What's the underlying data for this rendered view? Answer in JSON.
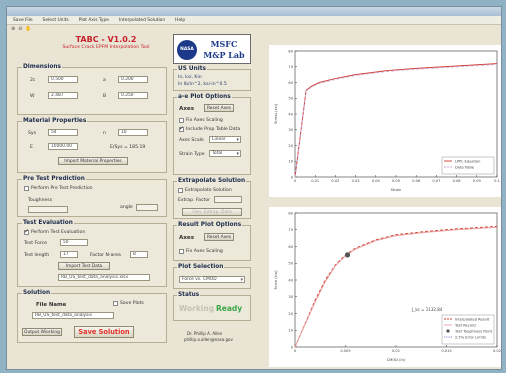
{
  "menu": [
    "Save File",
    "Select Units",
    "Plot Axis Type",
    "Interpolated Solution",
    "Help"
  ],
  "toolbar_icons": [
    "zoom-in-icon",
    "zoom-out-icon",
    "pan-icon"
  ],
  "app": {
    "title": "TABC - V1.0.2",
    "subtitle": "Surface Crack EPFM Interpolation Tool"
  },
  "logo": {
    "line1": "MSFC",
    "line2": "M&P Lab",
    "badge": "NASA"
  },
  "dimensions": {
    "title": "Dimensions",
    "fields": [
      {
        "label": "2c",
        "value": "0.500"
      },
      {
        "label": "a",
        "value": "0.200"
      },
      {
        "label": "W",
        "value": "2.487"
      },
      {
        "label": "B",
        "value": "0.250"
      }
    ]
  },
  "units": {
    "title": "US Units",
    "line1": "In, ksi, Kin",
    "line2": "In Ib/in^2, ksi-in^0.5"
  },
  "material": {
    "title": "Material Properties",
    "sys_label": "Sys",
    "sys_value": "54",
    "n_label": "n",
    "n_value": "10",
    "e_label": "E",
    "e_value": "10000.00",
    "e_note": "E/Sys = 185.19",
    "import_button": "Import Material Properties"
  },
  "plot_options": {
    "title": "a-e Plot Options",
    "axes_label": "Axes",
    "reset_button": "Reset Axes",
    "fix_axes": "Fix Axes Scaling",
    "include_table": "Include Prop Table Data",
    "axes_scale_label": "Axes Scale",
    "axes_scale_value": "Linear",
    "strain_type_label": "Strain Type",
    "strain_type_value": "Total"
  },
  "pretest": {
    "title": "Pre Test Prediction",
    "checkbox": "Perform Pre Test Prediction",
    "toughness_label": "Toughness",
    "angle_label": "angle"
  },
  "extrapolate": {
    "title": "Extrapolate Solution",
    "checkbox": "Extrapolate Solution",
    "error_label": "Extrap. Factor",
    "button": "Gen. Extrap. Data"
  },
  "test_eval": {
    "title": "Test Evaluation",
    "checkbox": "Perform Test Evaluation",
    "force_label": "Test Force",
    "force_value": "50",
    "length_label": "Test length",
    "length_value": "17",
    "factor_label": "Factor N-area",
    "factor_value": "8",
    "import_button": "Import Test Data",
    "file_value": "RB_US_test_data_analysis.xlsx"
  },
  "result_options": {
    "title": "Result Plot Options",
    "axes_label": "Axes",
    "reset_button": "Reset Axes",
    "fix_axes": "Fix Axes Scaling"
  },
  "plot_selection": {
    "title": "Plot Selection",
    "value": "Force vs. CMOD"
  },
  "solution": {
    "title": "Solution",
    "file_name_label": "File Name",
    "save_plots": "Save Plots",
    "file_value": "RB_US_test_data_analysis",
    "output_button": "Output Wiorking",
    "save_button": "Save Solution"
  },
  "status": {
    "title": "Status",
    "working": "Working",
    "ready": "Ready"
  },
  "credit": {
    "line1": "Dr. Phillip A. Allen",
    "line2": "phillip.a.allen@nasa.gov"
  },
  "chart_data": [
    {
      "type": "line",
      "title": "",
      "xlabel": "Strain",
      "ylabel": "Stress (ksi)",
      "xlim": [
        0,
        0.1
      ],
      "ylim": [
        0,
        80
      ],
      "x_ticks": [
        "0",
        "0.01",
        "0.02",
        "0.03",
        "0.04",
        "0.05",
        "0.06",
        "0.07",
        "0.08",
        "0.09",
        "0.1"
      ],
      "y_ticks": [
        "0",
        "10",
        "20",
        "30",
        "40",
        "50",
        "60",
        "70",
        "80"
      ],
      "legend_position": "bottom-right",
      "series": [
        {
          "name": "LPPL Equation",
          "color": "#d33a2a",
          "dash": "solid",
          "x": [
            0,
            0.0055,
            0.008,
            0.012,
            0.02,
            0.03,
            0.045,
            0.06,
            0.08,
            0.1
          ],
          "y": [
            0,
            55,
            57.5,
            60,
            62.5,
            65,
            67.5,
            69,
            70.5,
            72
          ]
        },
        {
          "name": "Data Table",
          "color": "#c9a7d6",
          "dash": "dashed",
          "x": [
            0,
            0.0055,
            0.008,
            0.012,
            0.02,
            0.03,
            0.045,
            0.06,
            0.08,
            0.1
          ],
          "y": [
            0,
            54.5,
            57,
            59.5,
            62,
            64.5,
            67,
            68.5,
            70,
            71.5
          ]
        }
      ]
    },
    {
      "type": "line",
      "title": "",
      "xlabel": "CMOD (in)",
      "ylabel": "Force (kip)",
      "xlim": [
        0,
        0.02
      ],
      "ylim": [
        0,
        80
      ],
      "x_ticks": [
        "0",
        "0.005",
        "0.01",
        "0.015",
        "0.02"
      ],
      "y_ticks": [
        "0",
        "10",
        "20",
        "30",
        "40",
        "50",
        "60",
        "70",
        "80"
      ],
      "annotation": "J_kc = 1132.84",
      "legend_position": "bottom-right",
      "series": [
        {
          "name": "Interpolated Result",
          "color": "#d33a2a",
          "dash": "dashed",
          "x": [
            0,
            0.001,
            0.002,
            0.003,
            0.004,
            0.005,
            0.006,
            0.008,
            0.01,
            0.013,
            0.016,
            0.02
          ],
          "y": [
            0,
            14,
            28,
            40,
            49,
            55,
            59,
            64,
            67,
            69,
            70.5,
            72
          ]
        },
        {
          "name": "Test Record",
          "color": "#e8a0a0",
          "dash": "solid",
          "x": [
            0,
            0.001,
            0.002,
            0.003,
            0.004,
            0.005,
            0.006,
            0.008,
            0.01,
            0.013,
            0.016,
            0.02
          ],
          "y": [
            0,
            13.5,
            27,
            39,
            48.5,
            54.5,
            58.5,
            63.5,
            66.5,
            68.5,
            70,
            71.5
          ]
        },
        {
          "name": "Test Toughness Point",
          "color": "#555555",
          "marker": "circle",
          "x": [
            0.0052
          ],
          "y": [
            55
          ]
        },
        {
          "name": "2.5% Error Limits",
          "color": "#7777cc",
          "dash": "dotted",
          "x": [],
          "y": []
        }
      ]
    }
  ]
}
